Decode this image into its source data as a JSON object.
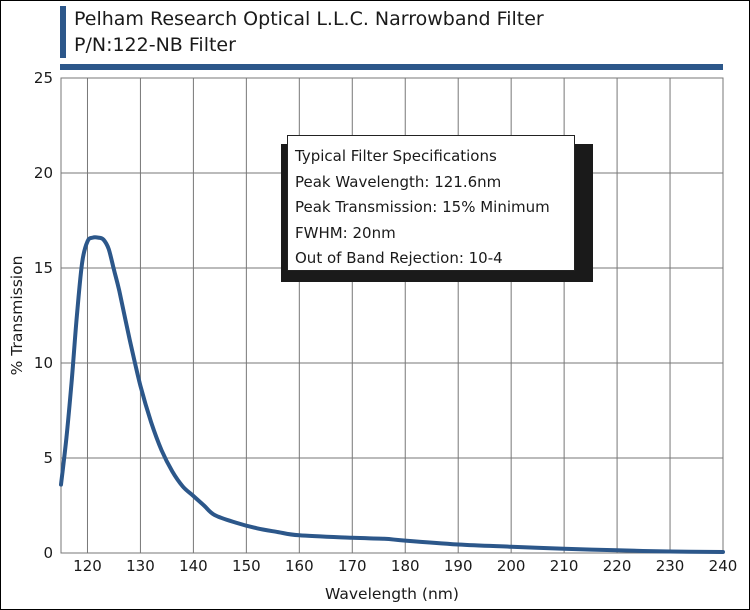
{
  "header": {
    "title": "Pelham Research Optical L.L.C. Narrowband Filter",
    "subtitle": "P/N:122-NB Filter"
  },
  "specs": {
    "heading": "Typical Filter Specifications",
    "peak_wavelength": "Peak Wavelength: 121.6nm",
    "peak_transmission": "Peak Transmission: 15% Minimum",
    "fwhm": "FWHM: 20nm",
    "rejection": "Out of Band Rejection: 10-4"
  },
  "chart_data": {
    "type": "line",
    "title": "Pelham Research Optical L.L.C. Narrowband Filter",
    "xlabel": "Wavelength (nm)",
    "ylabel": "% Transmission",
    "xlim": [
      115,
      240
    ],
    "ylim": [
      0,
      25
    ],
    "grid": true,
    "xticks": [
      120,
      130,
      140,
      150,
      160,
      170,
      180,
      190,
      200,
      210,
      220,
      230,
      240
    ],
    "yticks": [
      0,
      5,
      10,
      15,
      20,
      25
    ],
    "series": [
      {
        "name": "Transmission",
        "color": "#2c578a",
        "x": [
          115,
          116,
          117,
          118,
          119,
          120,
          121,
          122,
          123,
          124,
          125,
          126,
          128,
          130,
          132,
          134,
          136,
          138,
          140,
          142,
          144,
          148,
          152,
          156,
          160,
          170,
          176,
          180,
          190,
          200,
          210,
          220,
          230,
          240
        ],
        "y": [
          3.6,
          6.0,
          9.0,
          12.5,
          15.3,
          16.4,
          16.6,
          16.6,
          16.5,
          16.0,
          14.9,
          13.8,
          11.2,
          8.8,
          6.9,
          5.4,
          4.3,
          3.5,
          3.0,
          2.5,
          2.0,
          1.6,
          1.3,
          1.1,
          0.93,
          0.8,
          0.75,
          0.65,
          0.45,
          0.33,
          0.22,
          0.14,
          0.08,
          0.05
        ]
      }
    ]
  }
}
